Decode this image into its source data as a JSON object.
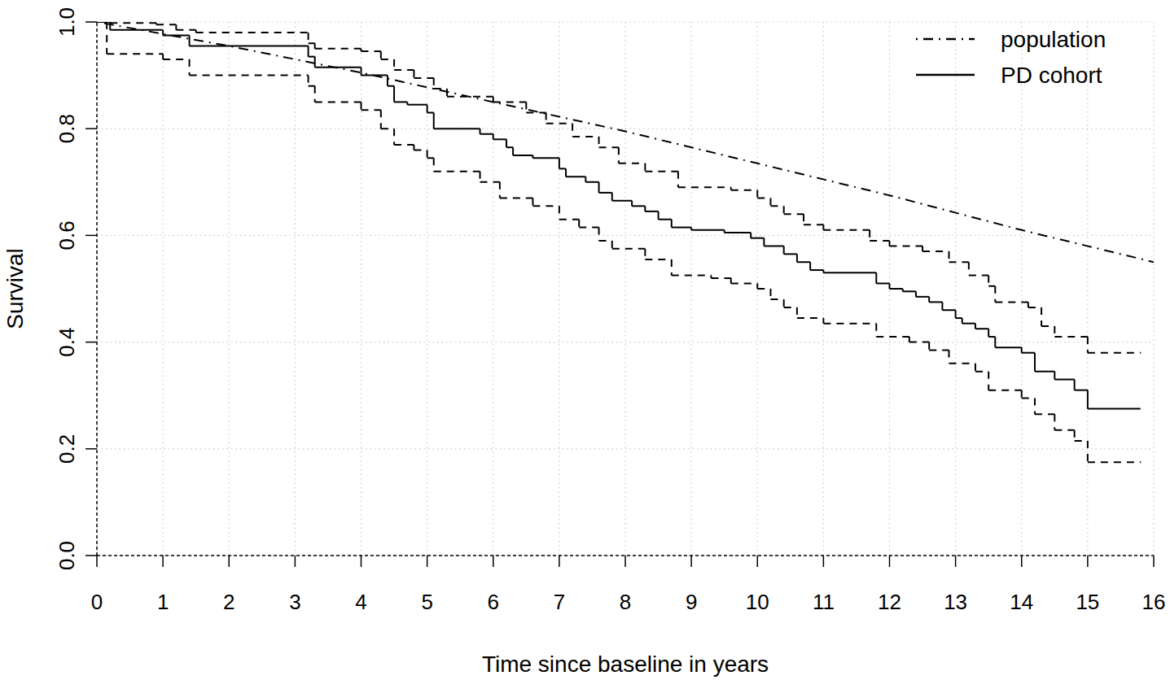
{
  "chart_data": {
    "type": "line",
    "x_label": "Time since baseline in years",
    "y_label": "Survival",
    "xlim": [
      0,
      16
    ],
    "ylim": [
      0,
      1
    ],
    "xticks": [
      0,
      1,
      2,
      3,
      4,
      5,
      6,
      7,
      8,
      9,
      10,
      11,
      12,
      13,
      14,
      15,
      16
    ],
    "yticks": [
      {
        "value": 0,
        "label": "0.0"
      },
      0.2,
      0.4,
      0.6,
      0.8,
      {
        "value": 1,
        "label": "1.0"
      }
    ],
    "grid": true,
    "legend": "top-right",
    "series": [
      {
        "name": "population",
        "type": "line",
        "line_style": "dashdot",
        "color": "#000000",
        "x": [
          0,
          2,
          4,
          6,
          8,
          10,
          12,
          14,
          16
        ],
        "values": [
          1.0,
          0.955,
          0.905,
          0.85,
          0.795,
          0.735,
          0.675,
          0.61,
          0.55
        ]
      },
      {
        "name": "PD cohort",
        "type": "step",
        "line_style": "solid",
        "color": "#000000",
        "x": [
          0,
          0.2,
          1.0,
          1.4,
          3.2,
          3.3,
          4.0,
          4.4,
          4.5,
          4.7,
          5.0,
          5.1,
          5.8,
          6.0,
          6.2,
          6.3,
          6.6,
          7.0,
          7.1,
          7.4,
          7.6,
          7.8,
          8.1,
          8.3,
          8.5,
          8.7,
          9.0,
          9.5,
          9.9,
          10.1,
          10.4,
          10.6,
          10.8,
          11.0,
          11.8,
          12.0,
          12.2,
          12.4,
          12.6,
          12.8,
          13.0,
          13.1,
          13.3,
          13.5,
          13.6,
          14.0,
          14.2,
          14.5,
          14.8,
          15.0,
          15.8
        ],
        "values": [
          1.0,
          0.985,
          0.975,
          0.955,
          0.935,
          0.915,
          0.9,
          0.88,
          0.85,
          0.845,
          0.83,
          0.8,
          0.79,
          0.78,
          0.765,
          0.75,
          0.745,
          0.725,
          0.71,
          0.7,
          0.68,
          0.665,
          0.655,
          0.645,
          0.63,
          0.615,
          0.61,
          0.605,
          0.595,
          0.58,
          0.565,
          0.55,
          0.535,
          0.53,
          0.51,
          0.5,
          0.495,
          0.485,
          0.475,
          0.46,
          0.445,
          0.435,
          0.425,
          0.41,
          0.39,
          0.38,
          0.345,
          0.33,
          0.31,
          0.275,
          0.275
        ]
      },
      {
        "type": "step",
        "line_style": "dashed",
        "color": "#000000",
        "x": [
          0,
          0.2,
          0.9,
          1.2,
          1.5,
          3.2,
          3.3,
          4.0,
          4.3,
          4.5,
          4.8,
          5.1,
          5.3,
          6.0,
          6.5,
          6.8,
          7.2,
          7.6,
          7.9,
          8.3,
          8.8,
          9.6,
          10.0,
          10.2,
          10.4,
          10.7,
          11.0,
          11.7,
          12.0,
          12.5,
          12.9,
          13.2,
          13.5,
          13.6,
          14.1,
          14.3,
          14.5,
          15.0,
          15.8
        ],
        "values": [
          1.0,
          0.998,
          0.995,
          0.985,
          0.98,
          0.96,
          0.95,
          0.945,
          0.93,
          0.91,
          0.895,
          0.875,
          0.86,
          0.85,
          0.83,
          0.81,
          0.785,
          0.765,
          0.735,
          0.72,
          0.69,
          0.685,
          0.67,
          0.655,
          0.64,
          0.62,
          0.61,
          0.59,
          0.58,
          0.57,
          0.55,
          0.525,
          0.505,
          0.475,
          0.465,
          0.43,
          0.41,
          0.38,
          0.38
        ]
      },
      {
        "type": "step",
        "line_style": "dashed",
        "color": "#000000",
        "x": [
          0,
          0.15,
          1.0,
          1.4,
          3.2,
          3.3,
          4.0,
          4.3,
          4.5,
          4.8,
          5.0,
          5.1,
          5.8,
          6.1,
          6.6,
          7.0,
          7.3,
          7.6,
          7.8,
          8.3,
          8.7,
          9.3,
          9.6,
          10.0,
          10.2,
          10.4,
          10.6,
          11.0,
          11.8,
          12.3,
          12.6,
          12.9,
          13.3,
          13.5,
          14.0,
          14.2,
          14.5,
          14.8,
          15.0,
          15.8
        ],
        "values": [
          1.0,
          0.94,
          0.93,
          0.9,
          0.88,
          0.85,
          0.835,
          0.8,
          0.77,
          0.76,
          0.745,
          0.72,
          0.7,
          0.67,
          0.655,
          0.63,
          0.615,
          0.59,
          0.575,
          0.555,
          0.525,
          0.52,
          0.51,
          0.5,
          0.48,
          0.465,
          0.445,
          0.435,
          0.41,
          0.4,
          0.385,
          0.36,
          0.345,
          0.31,
          0.295,
          0.265,
          0.235,
          0.215,
          0.175,
          0.175
        ]
      }
    ]
  }
}
